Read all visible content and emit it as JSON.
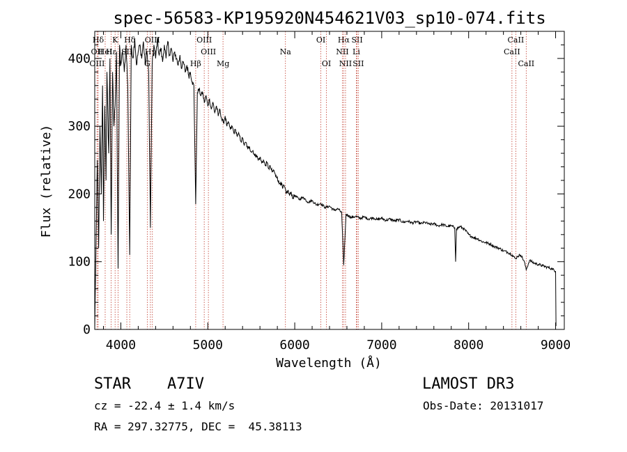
{
  "chart_data": {
    "type": "line",
    "title": "spec-56583-KP195920N454621V03_sp10-074.fits",
    "xlabel": "Wavelength (Å)",
    "ylabel": "Flux (relative)",
    "xlim": [
      3700,
      9100
    ],
    "ylim": [
      0,
      440
    ],
    "xticks": [
      4000,
      5000,
      6000,
      7000,
      8000,
      9000
    ],
    "yticks": [
      0,
      100,
      200,
      300,
      400
    ],
    "x_minor_step": 200,
    "y_minor_step": 20,
    "series": [
      {
        "name": "flux",
        "points": [
          [
            3700,
            0
          ],
          [
            3715,
            130
          ],
          [
            3730,
            250
          ],
          [
            3745,
            120
          ],
          [
            3760,
            300
          ],
          [
            3775,
            200
          ],
          [
            3790,
            360
          ],
          [
            3800,
            160
          ],
          [
            3815,
            330
          ],
          [
            3830,
            220
          ],
          [
            3840,
            380
          ],
          [
            3860,
            260
          ],
          [
            3875,
            400
          ],
          [
            3889,
            140
          ],
          [
            3905,
            380
          ],
          [
            3920,
            300
          ],
          [
            3934,
            330
          ],
          [
            3950,
            410
          ],
          [
            3968,
            90
          ],
          [
            3985,
            420
          ],
          [
            4000,
            390
          ],
          [
            4020,
            410
          ],
          [
            4040,
            380
          ],
          [
            4060,
            420
          ],
          [
            4080,
            360
          ],
          [
            4102,
            110
          ],
          [
            4120,
            420
          ],
          [
            4140,
            400
          ],
          [
            4160,
            430
          ],
          [
            4180,
            390
          ],
          [
            4200,
            410
          ],
          [
            4220,
            420
          ],
          [
            4240,
            400
          ],
          [
            4260,
            425
          ],
          [
            4280,
            390
          ],
          [
            4300,
            410
          ],
          [
            4320,
            380
          ],
          [
            4340,
            150
          ],
          [
            4360,
            390
          ],
          [
            4380,
            420
          ],
          [
            4400,
            400
          ],
          [
            4420,
            430
          ],
          [
            4440,
            405
          ],
          [
            4460,
            415
          ],
          [
            4480,
            395
          ],
          [
            4500,
            420
          ],
          [
            4520,
            400
          ],
          [
            4540,
            425
          ],
          [
            4560,
            405
          ],
          [
            4580,
            415
          ],
          [
            4600,
            395
          ],
          [
            4620,
            410
          ],
          [
            4640,
            400
          ],
          [
            4660,
            390
          ],
          [
            4680,
            405
          ],
          [
            4700,
            385
          ],
          [
            4720,
            395
          ],
          [
            4740,
            380
          ],
          [
            4760,
            390
          ],
          [
            4780,
            375
          ],
          [
            4800,
            380
          ],
          [
            4820,
            365
          ],
          [
            4840,
            360
          ],
          [
            4861,
            185
          ],
          [
            4880,
            350
          ],
          [
            4900,
            355
          ],
          [
            4920,
            345
          ],
          [
            4940,
            350
          ],
          [
            4960,
            335
          ],
          [
            4980,
            345
          ],
          [
            5000,
            330
          ],
          [
            5020,
            340
          ],
          [
            5040,
            325
          ],
          [
            5060,
            335
          ],
          [
            5080,
            320
          ],
          [
            5100,
            330
          ],
          [
            5120,
            315
          ],
          [
            5140,
            325
          ],
          [
            5160,
            310
          ],
          [
            5180,
            305
          ],
          [
            5200,
            315
          ],
          [
            5220,
            300
          ],
          [
            5240,
            305
          ],
          [
            5260,
            295
          ],
          [
            5280,
            300
          ],
          [
            5300,
            290
          ],
          [
            5320,
            295
          ],
          [
            5340,
            285
          ],
          [
            5360,
            288
          ],
          [
            5380,
            278
          ],
          [
            5400,
            282
          ],
          [
            5420,
            272
          ],
          [
            5440,
            276
          ],
          [
            5460,
            266
          ],
          [
            5480,
            270
          ],
          [
            5500,
            262
          ],
          [
            5520,
            264
          ],
          [
            5540,
            256
          ],
          [
            5560,
            258
          ],
          [
            5580,
            250
          ],
          [
            5600,
            254
          ],
          [
            5620,
            246
          ],
          [
            5640,
            250
          ],
          [
            5660,
            242
          ],
          [
            5680,
            246
          ],
          [
            5700,
            238
          ],
          [
            5720,
            240
          ],
          [
            5740,
            232
          ],
          [
            5760,
            235
          ],
          [
            5780,
            226
          ],
          [
            5800,
            225
          ],
          [
            5820,
            215
          ],
          [
            5840,
            218
          ],
          [
            5860,
            208
          ],
          [
            5880,
            212
          ],
          [
            5900,
            200
          ],
          [
            5920,
            205
          ],
          [
            5940,
            198
          ],
          [
            5960,
            202
          ],
          [
            5980,
            194
          ],
          [
            6000,
            198
          ],
          [
            6050,
            192
          ],
          [
            6100,
            195
          ],
          [
            6150,
            188
          ],
          [
            6200,
            190
          ],
          [
            6250,
            184
          ],
          [
            6300,
            186
          ],
          [
            6350,
            180
          ],
          [
            6400,
            182
          ],
          [
            6450,
            176
          ],
          [
            6500,
            178
          ],
          [
            6540,
            172
          ],
          [
            6563,
            95
          ],
          [
            6590,
            170
          ],
          [
            6620,
            168
          ],
          [
            6650,
            165
          ],
          [
            6700,
            167
          ],
          [
            6750,
            164
          ],
          [
            6800,
            166
          ],
          [
            6850,
            163
          ],
          [
            6900,
            165
          ],
          [
            6950,
            162
          ],
          [
            7000,
            164
          ],
          [
            7050,
            161
          ],
          [
            7100,
            163
          ],
          [
            7150,
            160
          ],
          [
            7200,
            162
          ],
          [
            7250,
            158
          ],
          [
            7300,
            160
          ],
          [
            7350,
            157
          ],
          [
            7400,
            159
          ],
          [
            7450,
            156
          ],
          [
            7500,
            158
          ],
          [
            7550,
            155
          ],
          [
            7600,
            156
          ],
          [
            7650,
            153
          ],
          [
            7700,
            155
          ],
          [
            7750,
            152
          ],
          [
            7800,
            153
          ],
          [
            7840,
            150
          ],
          [
            7850,
            100
          ],
          [
            7860,
            148
          ],
          [
            7900,
            152
          ],
          [
            7950,
            148
          ],
          [
            8000,
            140
          ],
          [
            8050,
            136
          ],
          [
            8100,
            134
          ],
          [
            8150,
            130
          ],
          [
            8200,
            128
          ],
          [
            8250,
            126
          ],
          [
            8300,
            122
          ],
          [
            8350,
            120
          ],
          [
            8400,
            116
          ],
          [
            8450,
            114
          ],
          [
            8500,
            110
          ],
          [
            8540,
            104
          ],
          [
            8560,
            108
          ],
          [
            8600,
            110
          ],
          [
            8640,
            100
          ],
          [
            8662,
            88
          ],
          [
            8700,
            102
          ],
          [
            8750,
            98
          ],
          [
            8800,
            96
          ],
          [
            8850,
            94
          ],
          [
            8900,
            92
          ],
          [
            8950,
            90
          ],
          [
            9000,
            86
          ],
          [
            9005,
            5
          ]
        ]
      }
    ],
    "lines": [
      {
        "label": "Hδ",
        "wavelength": 3740,
        "row": 0
      },
      {
        "label": "OII",
        "wavelength": 3727,
        "row": 1
      },
      {
        "label": "OIII",
        "wavelength": 3727,
        "row": 2
      },
      {
        "label": "HeI",
        "wavelength": 3820,
        "row": 1
      },
      {
        "label": "K",
        "wavelength": 3934,
        "row": 0
      },
      {
        "label": "H",
        "wavelength": 3968,
        "row": 2
      },
      {
        "label": "Hε",
        "wavelength": 3889,
        "row": 1
      },
      {
        "label": "Hδ",
        "wavelength": 4102,
        "row": 0
      },
      {
        "label": "SII",
        "wavelength": 4069,
        "row": 1
      },
      {
        "label": "OIII",
        "wavelength": 4363,
        "row": 0
      },
      {
        "label": "Hγ",
        "wavelength": 4340,
        "row": 1
      },
      {
        "label": "G",
        "wavelength": 4304,
        "row": 2
      },
      {
        "label": "Hβ",
        "wavelength": 4861,
        "row": 2
      },
      {
        "label": "OIII",
        "wavelength": 4959,
        "row": 0
      },
      {
        "label": "OIII",
        "wavelength": 5007,
        "row": 1
      },
      {
        "label": "Mg",
        "wavelength": 5175,
        "row": 2
      },
      {
        "label": "Na",
        "wavelength": 5893,
        "row": 1
      },
      {
        "label": "OI",
        "wavelength": 6300,
        "row": 0
      },
      {
        "label": "OI",
        "wavelength": 6364,
        "row": 2
      },
      {
        "label": "Hα",
        "wavelength": 6563,
        "row": 0
      },
      {
        "label": "NII",
        "wavelength": 6548,
        "row": 1
      },
      {
        "label": "NII",
        "wavelength": 6584,
        "row": 2
      },
      {
        "label": "SII",
        "wavelength": 6717,
        "row": 0
      },
      {
        "label": "Li",
        "wavelength": 6708,
        "row": 1
      },
      {
        "label": "SII",
        "wavelength": 6731,
        "row": 2
      },
      {
        "label": "CaII",
        "wavelength": 8542,
        "row": 0
      },
      {
        "label": "CaII",
        "wavelength": 8498,
        "row": 1
      },
      {
        "label": "CaII",
        "wavelength": 8662,
        "row": 2
      }
    ]
  },
  "footer": {
    "object_class": "STAR",
    "subclass": "A7IV",
    "survey": "LAMOST DR3",
    "redshift": "cz = -22.4 ± 1.4 km/s",
    "obs_date": "Obs-Date: 20131017",
    "coords": "RA = 297.32775, DEC =  45.38113"
  }
}
